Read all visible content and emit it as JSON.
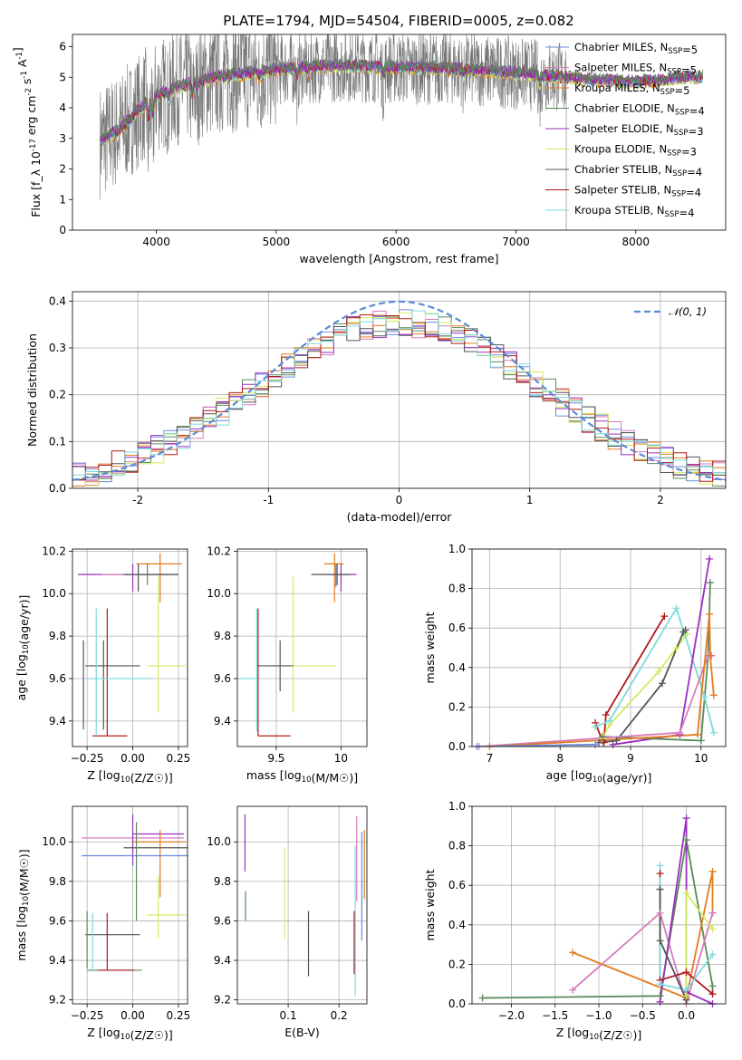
{
  "figure": {
    "title": "PLATE=1794, MJD=54504, FIBERID=0005, z=0.082"
  },
  "colors": {
    "c0": "#6a8cdc",
    "c1": "#d67dbc",
    "c2": "#e37b1f",
    "c3": "#5b8a5b",
    "c4": "#9a2fc0",
    "c5": "#d4ea62",
    "c6": "#555555",
    "c7": "#b01818",
    "c8": "#7fd9dd",
    "data": "#777777",
    "gauss": "#5b8ad8"
  },
  "chart_data": [
    {
      "id": "spectrum",
      "type": "line",
      "xlabel": "wavelength [Angstrom, rest frame]",
      "ylabel": "Flux [f_λ 10^-17 erg cm^-2 s^-1 A^-1]",
      "xlim": [
        3300,
        8750
      ],
      "ylim": [
        0,
        6.4
      ],
      "xticks": [
        4000,
        5000,
        6000,
        7000,
        8000
      ],
      "yticks": [
        0,
        1,
        2,
        3,
        4,
        5,
        6
      ],
      "grid": false,
      "legend_position": "upper right",
      "legend": [
        "Chabrier MILES, N_SSP=5",
        "Salpeter MILES, N_SSP=5",
        "Kroupa MILES, N_SSP=5",
        "Chabrier ELODIE, N_SSP=4",
        "Salpeter ELODIE, N_SSP=3",
        "Kroupa ELODIE, N_SSP=3",
        "Chabrier STELIB, N_SSP=4",
        "Salpeter STELIB, N_SSP=4",
        "Kroupa STELIB, N_SSP=4"
      ],
      "continuum": {
        "x": [
          3530,
          3700,
          3800,
          3900,
          4000,
          4200,
          4400,
          4600,
          4800,
          5000,
          5200,
          5400,
          5600,
          5800,
          6000,
          6200,
          6400,
          6600,
          6800,
          7000,
          7200,
          7400,
          7600,
          7800,
          8000,
          8200,
          8400,
          8600
        ],
        "y": [
          2.9,
          3.3,
          3.7,
          4.1,
          4.4,
          4.7,
          4.9,
          5.05,
          5.15,
          5.25,
          5.3,
          5.35,
          5.38,
          5.35,
          5.3,
          5.3,
          5.28,
          5.25,
          5.2,
          5.12,
          5.05,
          5.0,
          4.92,
          4.88,
          4.85,
          4.9,
          4.98,
          5.02
        ]
      }
    },
    {
      "id": "residuals",
      "type": "histogram",
      "xlabel": "(data-model)/error",
      "ylabel": "Normed distribution",
      "xlim": [
        -2.5,
        2.5
      ],
      "ylim": [
        0,
        0.42
      ],
      "xticks": [
        -2,
        -1,
        0,
        1,
        2
      ],
      "yticks": [
        0.0,
        0.1,
        0.2,
        0.3,
        0.4
      ],
      "grid": true,
      "legend_position": "upper right",
      "legend_label": "𝒩(0, 1)",
      "bin_width": 0.1,
      "model_sigma": 1.09,
      "model_peak": 0.355
    },
    {
      "id": "age_vs_Z",
      "type": "errorbar",
      "xlabel": "Z [log10(Z/Z☉)]",
      "ylabel": "age  [log10(age/yr)]",
      "xlim": [
        -0.33,
        0.3
      ],
      "ylim": [
        9.28,
        10.21
      ],
      "xticks": [
        -0.25,
        0.0,
        0.25
      ],
      "xticklabels": [
        "−0.25",
        "0.00",
        "0.25"
      ],
      "yticks": [
        9.4,
        9.6,
        9.8,
        10.0,
        10.2
      ],
      "grid": true,
      "points": [
        {
          "x": 0.0,
          "y": 10.09,
          "xerr": [
            0.3,
            0.2
          ],
          "yerr": [
            0.08,
            0.05
          ],
          "c": "c4"
        },
        {
          "x": 0.03,
          "y": 10.09,
          "xerr": [
            0.2,
            0.22
          ],
          "yerr": [
            0.07,
            0.05
          ],
          "c": "c1"
        },
        {
          "x": 0.15,
          "y": 10.14,
          "xerr": [
            0.13,
            0.12
          ],
          "yerr": [
            0.18,
            0.05
          ],
          "c": "c2"
        },
        {
          "x": 0.08,
          "y": 10.09,
          "xerr": [
            0.12,
            0.14
          ],
          "yerr": [
            0.05,
            0.05
          ],
          "c": "c3"
        },
        {
          "x": 0.03,
          "y": 10.09,
          "xerr": [
            0.08,
            0.22
          ],
          "yerr": [
            0.08,
            0.05
          ],
          "c": "c6"
        },
        {
          "x": 0.14,
          "y": 9.66,
          "xerr": [
            0.06,
            0.15
          ],
          "yerr": [
            0.22,
            0.42
          ],
          "c": "c5"
        },
        {
          "x": -0.16,
          "y": 9.66,
          "xerr": [
            0.1,
            0.2
          ],
          "yerr": [
            0.3,
            0.12
          ],
          "c": "c6"
        },
        {
          "x": -0.14,
          "y": 9.33,
          "xerr": [
            0.08,
            0.11
          ],
          "yerr": [
            0.0,
            0.6
          ],
          "c": "c7"
        },
        {
          "x": -0.2,
          "y": 9.6,
          "xerr": [
            0.05,
            0.3
          ],
          "yerr": [
            0.27,
            0.33
          ],
          "c": "c8"
        },
        {
          "x": -0.27,
          "y": 9.66,
          "xerr": [
            0.0,
            0.0
          ],
          "yerr": [
            0.3,
            0.12
          ],
          "c": "c6"
        }
      ]
    },
    {
      "id": "age_vs_mass",
      "type": "errorbar",
      "xlabel": "mass [log10(M/M☉)]",
      "ylabel": "",
      "xlim": [
        9.2,
        10.2
      ],
      "ylim": [
        9.28,
        10.21
      ],
      "xticks": [
        9.5,
        10.0
      ],
      "yticks": [
        9.4,
        9.6,
        9.8,
        10.0,
        10.2
      ],
      "grid": true,
      "points": [
        {
          "x": 10.0,
          "y": 10.09,
          "xerr": [
            0.1,
            0.12
          ],
          "yerr": [
            0.08,
            0.05
          ],
          "c": "c4"
        },
        {
          "x": 9.96,
          "y": 10.09,
          "xerr": [
            0.08,
            0.1
          ],
          "yerr": [
            0.06,
            0.05
          ],
          "c": "c0"
        },
        {
          "x": 9.95,
          "y": 10.14,
          "xerr": [
            0.08,
            0.07
          ],
          "yerr": [
            0.18,
            0.05
          ],
          "c": "c2"
        },
        {
          "x": 9.97,
          "y": 10.09,
          "xerr": [
            0.2,
            0.1
          ],
          "yerr": [
            0.05,
            0.05
          ],
          "c": "c6"
        },
        {
          "x": 9.63,
          "y": 9.66,
          "xerr": [
            0.0,
            0.33
          ],
          "yerr": [
            0.22,
            0.42
          ],
          "c": "c5"
        },
        {
          "x": 9.53,
          "y": 9.66,
          "xerr": [
            0.18,
            0.1
          ],
          "yerr": [
            0.12,
            0.12
          ],
          "c": "c6"
        },
        {
          "x": 9.36,
          "y": 9.33,
          "xerr": [
            0.0,
            0.25
          ],
          "yerr": [
            0.0,
            0.6
          ],
          "c": "c7"
        },
        {
          "x": 9.35,
          "y": 9.6,
          "xerr": [
            0.15,
            0.0
          ],
          "yerr": [
            0.25,
            0.33
          ],
          "c": "c8"
        }
      ]
    },
    {
      "id": "mass_weight_vs_age",
      "type": "line",
      "xlabel": "age  [log10(age/yr)]",
      "ylabel": "mass weight",
      "xlim": [
        6.75,
        10.35
      ],
      "ylim": [
        0,
        1.0
      ],
      "xticks": [
        7,
        8,
        9,
        10
      ],
      "yticks": [
        0.0,
        0.2,
        0.4,
        0.6,
        0.8,
        1.0
      ],
      "grid": true,
      "series": [
        {
          "c": "c7",
          "x": [
            8.5,
            8.6,
            8.62,
            8.65,
            9.48
          ],
          "y": [
            0.12,
            0.03,
            0.02,
            0.16,
            0.66
          ]
        },
        {
          "c": "c5",
          "x": [
            8.6,
            8.7,
            9.4,
            9.65,
            9.8
          ],
          "y": [
            0.04,
            0.11,
            0.38,
            0.5,
            0.57
          ]
        },
        {
          "c": "c6",
          "x": [
            8.55,
            8.8,
            9.45,
            9.75,
            9.78
          ],
          "y": [
            0.02,
            0.03,
            0.32,
            0.58,
            0.59
          ]
        },
        {
          "c": "c8",
          "x": [
            8.5,
            8.7,
            9.65,
            10.05,
            10.18
          ],
          "y": [
            0.1,
            0.13,
            0.7,
            0.25,
            0.07
          ]
        },
        {
          "c": "c4",
          "x": [
            8.75,
            9.7,
            10.12
          ],
          "y": [
            0.01,
            0.06,
            0.95
          ]
        },
        {
          "c": "c3",
          "x": [
            8.6,
            10.0,
            10.1,
            10.13
          ],
          "y": [
            0.05,
            0.03,
            0.46,
            0.83
          ]
        },
        {
          "c": "c1",
          "x": [
            6.85,
            9.7,
            10.1,
            10.14,
            10.15
          ],
          "y": [
            0.0,
            0.07,
            0.46,
            0.46,
            0.46
          ]
        },
        {
          "c": "c2",
          "x": [
            7.0,
            9.95,
            10.12,
            10.13,
            10.18
          ],
          "y": [
            0.0,
            0.06,
            0.67,
            0.46,
            0.26
          ]
        },
        {
          "c": "c0",
          "x": [
            6.82,
            8.5
          ],
          "y": [
            0.0,
            0.01
          ]
        }
      ]
    },
    {
      "id": "mass_vs_Z",
      "type": "errorbar",
      "xlabel": "Z [log10(Z/Z☉)]",
      "ylabel": "mass [log10(M/M☉)]",
      "xlim": [
        -0.33,
        0.3
      ],
      "ylim": [
        9.18,
        10.18
      ],
      "xticks": [
        -0.25,
        0.0,
        0.25
      ],
      "xticklabels": [
        "−0.25",
        "0.00",
        "0.25"
      ],
      "yticks": [
        9.2,
        9.4,
        9.6,
        9.8,
        10.0
      ],
      "grid": true,
      "points": [
        {
          "x": -0.05,
          "y": 10.02,
          "xerr": [
            0.23,
            0.33
          ],
          "yerr": [
            0.0,
            0.0
          ],
          "c": "c1"
        },
        {
          "x": 0.1,
          "y": 10.04,
          "xerr": [
            0.1,
            0.18
          ],
          "yerr": [
            0.0,
            0.0
          ],
          "c": "c4"
        },
        {
          "x": 0.0,
          "y": 10.0,
          "xerr": [
            0.0,
            0.0
          ],
          "yerr": [
            0.12,
            0.14
          ],
          "c": "c4"
        },
        {
          "x": 0.15,
          "y": 10.0,
          "xerr": [
            0.15,
            0.14
          ],
          "yerr": [
            0.28,
            0.06
          ],
          "c": "c2"
        },
        {
          "x": 0.1,
          "y": 9.97,
          "xerr": [
            0.15,
            0.2
          ],
          "yerr": [
            0.0,
            0.0
          ],
          "c": "c6"
        },
        {
          "x": 0.0,
          "y": 9.93,
          "xerr": [
            0.28,
            0.3
          ],
          "yerr": [
            0.0,
            0.0
          ],
          "c": "c0"
        },
        {
          "x": 0.02,
          "y": 9.8,
          "xerr": [
            0.0,
            0.0
          ],
          "yerr": [
            0.2,
            0.3
          ],
          "c": "c3"
        },
        {
          "x": 0.14,
          "y": 9.63,
          "xerr": [
            0.06,
            0.15
          ],
          "yerr": [
            0.12,
            0.2
          ],
          "c": "c5"
        },
        {
          "x": -0.16,
          "y": 9.53,
          "xerr": [
            0.1,
            0.2
          ],
          "yerr": [
            0.0,
            0.0
          ],
          "c": "c6"
        },
        {
          "x": -0.14,
          "y": 9.5,
          "xerr": [
            0.0,
            0.0
          ],
          "yerr": [
            0.15,
            0.14
          ],
          "c": "c7"
        },
        {
          "x": -0.2,
          "y": 9.35,
          "xerr": [
            0.05,
            0.25
          ],
          "yerr": [
            0.0,
            0.0
          ],
          "c": "c3"
        },
        {
          "x": -0.19,
          "y": 9.35,
          "xerr": [
            0.0,
            0.2
          ],
          "yerr": [
            0.0,
            0.0
          ],
          "c": "c7"
        },
        {
          "x": -0.25,
          "y": 9.5,
          "xerr": [
            0.0,
            0.0
          ],
          "yerr": [
            0.14,
            0.15
          ],
          "c": "c3"
        },
        {
          "x": -0.22,
          "y": 9.5,
          "xerr": [
            0.0,
            0.0
          ],
          "yerr": [
            0.15,
            0.14
          ],
          "c": "c8"
        }
      ]
    },
    {
      "id": "mass_vs_ebv",
      "type": "errorbar",
      "xlabel": "E(B-V)",
      "ylabel": "",
      "xlim": [
        0.0,
        0.255
      ],
      "ylim": [
        9.18,
        10.18
      ],
      "xticks": [
        0.1,
        0.2
      ],
      "yticks": [
        9.2,
        9.4,
        9.6,
        9.8,
        10.0
      ],
      "grid": true,
      "points": [
        {
          "x": 0.015,
          "y": 10.0,
          "xerr": [
            0.0,
            0.0
          ],
          "yerr": [
            0.15,
            0.14
          ],
          "c": "c4"
        },
        {
          "x": 0.016,
          "y": 9.7,
          "xerr": [
            0.0,
            0.0
          ],
          "yerr": [
            0.1,
            0.05
          ],
          "c": "c3"
        },
        {
          "x": 0.093,
          "y": 9.74,
          "xerr": [
            0.0,
            0.0
          ],
          "yerr": [
            0.23,
            0.23
          ],
          "c": "c5"
        },
        {
          "x": 0.14,
          "y": 9.48,
          "xerr": [
            0.0,
            0.0
          ],
          "yerr": [
            0.16,
            0.17
          ],
          "c": "c6"
        },
        {
          "x": 0.23,
          "y": 9.48,
          "xerr": [
            0.0,
            0.0
          ],
          "yerr": [
            0.15,
            0.17
          ],
          "c": "c7"
        },
        {
          "x": 0.232,
          "y": 9.6,
          "xerr": [
            0.0,
            0.0
          ],
          "yerr": [
            0.38,
            0.38
          ],
          "c": "c8"
        },
        {
          "x": 0.235,
          "y": 9.85,
          "xerr": [
            0.0,
            0.0
          ],
          "yerr": [
            0.15,
            0.28
          ],
          "c": "c1"
        },
        {
          "x": 0.245,
          "y": 9.8,
          "xerr": [
            0.0,
            0.0
          ],
          "yerr": [
            0.3,
            0.25
          ],
          "c": "c0"
        },
        {
          "x": 0.25,
          "y": 9.9,
          "xerr": [
            0.0,
            0.0
          ],
          "yerr": [
            0.19,
            0.16
          ],
          "c": "c2"
        }
      ]
    },
    {
      "id": "mass_weight_vs_Z",
      "type": "line",
      "xlabel": "Z [log10(Z/Z☉)]",
      "ylabel": "mass weight",
      "xlim": [
        -2.45,
        0.45
      ],
      "ylim": [
        0,
        1.0
      ],
      "xticks": [
        -2.0,
        -1.5,
        -1.0,
        -0.5,
        0.0
      ],
      "xticklabels": [
        "−2.0",
        "−1.5",
        "−1.0",
        "−0.5",
        "0.0"
      ],
      "yticks": [
        0.0,
        0.2,
        0.4,
        0.6,
        0.8,
        1.0
      ],
      "grid": true,
      "series": [
        {
          "c": "c3",
          "x": [
            -2.33,
            -0.3,
            0.0,
            0.3,
            0.3
          ],
          "y": [
            0.03,
            0.04,
            0.83,
            0.09,
            0.05
          ]
        },
        {
          "c": "c2",
          "x": [
            -1.3,
            0.0,
            0.3,
            0.3
          ],
          "y": [
            0.26,
            0.03,
            0.67,
            0.46
          ]
        },
        {
          "c": "c1",
          "x": [
            -1.3,
            -0.3,
            0.0,
            0.3
          ],
          "y": [
            0.07,
            0.46,
            0.0,
            0.46
          ]
        },
        {
          "c": "c7",
          "x": [
            -0.3,
            -0.3,
            0.0,
            0.3
          ],
          "y": [
            0.66,
            0.12,
            0.16,
            0.05
          ]
        },
        {
          "c": "c4",
          "x": [
            -0.3,
            0.0,
            0.0,
            0.3
          ],
          "y": [
            0.01,
            0.94,
            0.06,
            0.0
          ]
        },
        {
          "c": "c8",
          "x": [
            -0.3,
            -0.3,
            0.0,
            0.3
          ],
          "y": [
            0.7,
            0.1,
            0.07,
            0.25
          ]
        },
        {
          "c": "c6",
          "x": [
            -0.3,
            -0.3,
            0.0
          ],
          "y": [
            0.58,
            0.32,
            0.02
          ]
        },
        {
          "c": "c5",
          "x": [
            0.0,
            0.0,
            0.3
          ],
          "y": [
            0.04,
            0.56,
            0.38
          ]
        }
      ]
    }
  ]
}
